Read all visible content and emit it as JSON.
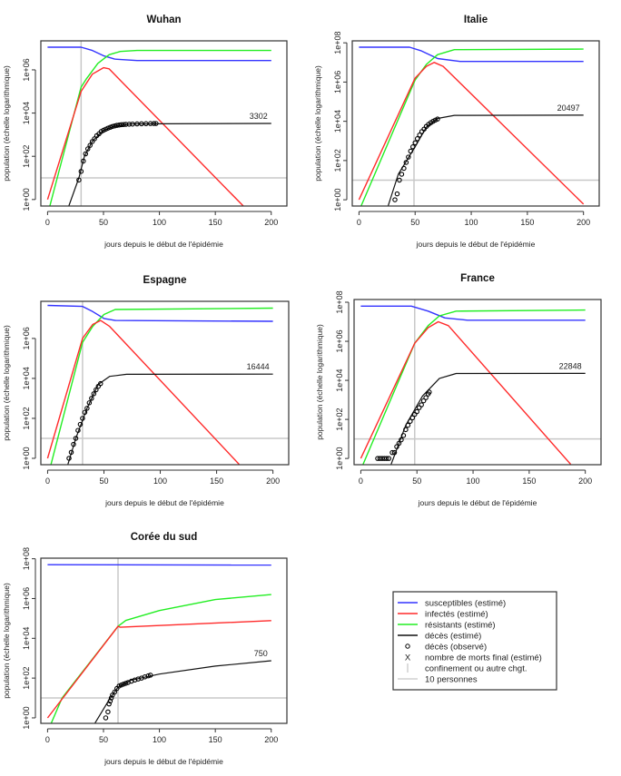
{
  "colors": {
    "susceptibles": "#3333ff",
    "infectes": "#ff2a2a",
    "resistants": "#22ee22",
    "deces": "#111111",
    "confinement": "#c8c8c8",
    "dix_personnes": "#c8c8c8"
  },
  "chart_data": [
    {
      "type": "line",
      "title": "Wuhan",
      "xlabel": "jours depuis le début de l'épidémie",
      "ylabel": "population (échelle logarithmique)",
      "y_scale": "log",
      "xlim": [
        -6,
        214
      ],
      "ylim": [
        0.5,
        22000000.0
      ],
      "xticks": [
        0,
        50,
        100,
        150,
        200
      ],
      "yticks": [
        1,
        100,
        10000,
        1000000
      ],
      "ytick_labels": [
        "1e+00",
        "1e+02",
        "1e+04",
        "1e+06"
      ],
      "confinement_day": 30,
      "hline": 10,
      "final_deaths_label": "3302",
      "susceptibles": [
        [
          0,
          11200000.0
        ],
        [
          30,
          11200000.0
        ],
        [
          40,
          7900000.0
        ],
        [
          50,
          4500000.0
        ],
        [
          60,
          3160000.0
        ],
        [
          80,
          2700000.0
        ],
        [
          200,
          2700000.0
        ]
      ],
      "resistants": [
        [
          2,
          0.5
        ],
        [
          30,
          158000.0
        ],
        [
          35,
          400000.0
        ],
        [
          45,
          2000000.0
        ],
        [
          55,
          5000000.0
        ],
        [
          65,
          7100000.0
        ],
        [
          80,
          7900000.0
        ],
        [
          200,
          7900000.0
        ]
      ],
      "infectes": [
        [
          0,
          1
        ],
        [
          30,
          100000.0
        ],
        [
          40,
          630000.0
        ],
        [
          50,
          1260000.0
        ],
        [
          55,
          1120000.0
        ],
        [
          175,
          0.5
        ]
      ],
      "deces": [
        [
          19,
          0.5
        ],
        [
          28,
          10
        ],
        [
          33,
          100
        ],
        [
          40,
          500
        ],
        [
          50,
          1580
        ],
        [
          60,
          2500
        ],
        [
          75,
          3160
        ],
        [
          200,
          3302
        ]
      ],
      "deces_observes": [
        [
          28,
          8
        ],
        [
          30,
          20
        ],
        [
          32,
          60
        ],
        [
          34,
          130
        ],
        [
          36,
          220
        ],
        [
          38,
          320
        ],
        [
          40,
          480
        ],
        [
          42,
          650
        ],
        [
          44,
          900
        ],
        [
          46,
          1100
        ],
        [
          48,
          1400
        ],
        [
          50,
          1600
        ],
        [
          52,
          1800
        ],
        [
          54,
          2000
        ],
        [
          56,
          2200
        ],
        [
          58,
          2400
        ],
        [
          60,
          2550
        ],
        [
          62,
          2700
        ],
        [
          64,
          2800
        ],
        [
          66,
          2900
        ],
        [
          68,
          2950
        ],
        [
          70,
          3000
        ],
        [
          73,
          3050
        ],
        [
          76,
          3100
        ],
        [
          80,
          3150
        ],
        [
          84,
          3200
        ],
        [
          88,
          3230
        ],
        [
          92,
          3260
        ],
        [
          95,
          3280
        ],
        [
          97,
          3290
        ]
      ]
    },
    {
      "type": "line",
      "title": "Italie",
      "xlabel": "jours depuis le début de l'épidémie",
      "ylabel": "population (échelle logarithmique)",
      "y_scale": "log",
      "xlim": [
        -6,
        214
      ],
      "ylim": [
        0.48,
        126000000.0
      ],
      "xticks": [
        0,
        50,
        100,
        150,
        200
      ],
      "yticks": [
        1,
        100,
        10000,
        1000000,
        100000000
      ],
      "ytick_labels": [
        "1e+00",
        "1e+02",
        "1e+04",
        "1e+06",
        "1e+08"
      ],
      "confinement_day": 49,
      "hline": 10,
      "final_deaths_label": "20497",
      "susceptibles": [
        [
          0,
          60000000.0
        ],
        [
          45,
          60000000.0
        ],
        [
          55,
          40000000.0
        ],
        [
          70,
          15800000.0
        ],
        [
          90,
          11200000.0
        ],
        [
          200,
          11200000.0
        ]
      ],
      "resistants": [
        [
          2,
          0.5
        ],
        [
          50,
          1260000.0
        ],
        [
          60,
          7900000.0
        ],
        [
          70,
          25000000.0
        ],
        [
          85,
          45000000.0
        ],
        [
          200,
          48000000.0
        ]
      ],
      "infectes": [
        [
          0,
          1
        ],
        [
          50,
          1580000.0
        ],
        [
          60,
          6300000.0
        ],
        [
          67,
          10000000.0
        ],
        [
          75,
          6300000.0
        ],
        [
          200,
          0.6
        ]
      ],
      "deces": [
        [
          26,
          0.5
        ],
        [
          35,
          20
        ],
        [
          50,
          500
        ],
        [
          60,
          5000
        ],
        [
          70,
          14000
        ],
        [
          85,
          20000
        ],
        [
          200,
          20497
        ]
      ],
      "deces_observes": [
        [
          32,
          1
        ],
        [
          34,
          2
        ],
        [
          36,
          10
        ],
        [
          38,
          20
        ],
        [
          40,
          40
        ],
        [
          42,
          80
        ],
        [
          44,
          150
        ],
        [
          46,
          300
        ],
        [
          48,
          500
        ],
        [
          50,
          800
        ],
        [
          52,
          1300
        ],
        [
          54,
          2000
        ],
        [
          56,
          3000
        ],
        [
          58,
          4000
        ],
        [
          60,
          5500
        ],
        [
          62,
          7000
        ],
        [
          64,
          8500
        ],
        [
          66,
          10000
        ],
        [
          68,
          11500
        ],
        [
          70,
          13000
        ]
      ]
    },
    {
      "type": "line",
      "title": "Espagne",
      "xlabel": "jours depuis le début de l'épidémie",
      "ylabel": "population (échelle logarithmique)",
      "y_scale": "log",
      "xlim": [
        -6,
        214
      ],
      "ylim": [
        0.48,
        72000000.0
      ],
      "xticks": [
        0,
        50,
        100,
        150,
        200
      ],
      "yticks": [
        1,
        100,
        10000,
        1000000
      ],
      "ytick_labels": [
        "1e+00",
        "1e+02",
        "1e+04",
        "1e+06"
      ],
      "confinement_day": 31,
      "hline": 10,
      "final_deaths_label": "16444",
      "susceptibles": [
        [
          0,
          45000000.0
        ],
        [
          31,
          40000000.0
        ],
        [
          40,
          22000000.0
        ],
        [
          50,
          10000000.0
        ],
        [
          60,
          7900000.0
        ],
        [
          200,
          7200000.0
        ]
      ],
      "resistants": [
        [
          3,
          0.5
        ],
        [
          31,
          630000.0
        ],
        [
          40,
          4000000.0
        ],
        [
          50,
          15800000.0
        ],
        [
          60,
          28000000.0
        ],
        [
          200,
          33000000.0
        ]
      ],
      "infectes": [
        [
          0,
          1
        ],
        [
          31,
          1000000.0
        ],
        [
          40,
          5000000.0
        ],
        [
          47,
          7900000.0
        ],
        [
          55,
          4000000.0
        ],
        [
          170,
          0.5
        ]
      ],
      "deces": [
        [
          18,
          0.5
        ],
        [
          25,
          10
        ],
        [
          35,
          320
        ],
        [
          45,
          5000
        ],
        [
          55,
          12600
        ],
        [
          70,
          16000
        ],
        [
          200,
          16444
        ]
      ],
      "deces_observes": [
        [
          19,
          1
        ],
        [
          21,
          2
        ],
        [
          23,
          5
        ],
        [
          25,
          10
        ],
        [
          27,
          25
        ],
        [
          29,
          50
        ],
        [
          31,
          100
        ],
        [
          33,
          200
        ],
        [
          35,
          320
        ],
        [
          37,
          600
        ],
        [
          39,
          1000
        ],
        [
          41,
          1700
        ],
        [
          43,
          2700
        ],
        [
          45,
          4000
        ],
        [
          47,
          5500
        ]
      ]
    },
    {
      "type": "line",
      "title": "France",
      "xlabel": "jours depuis le début de l'épidémie",
      "ylabel": "population (échelle logarithmique)",
      "y_scale": "log",
      "xlim": [
        -6,
        214
      ],
      "ylim": [
        0.48,
        138000000.0
      ],
      "xticks": [
        0,
        50,
        100,
        150,
        200
      ],
      "yticks": [
        1,
        100,
        10000,
        1000000,
        100000000
      ],
      "ytick_labels": [
        "1e+00",
        "1e+02",
        "1e+04",
        "1e+06",
        "1e+08"
      ],
      "confinement_day": 48,
      "hline": 10,
      "final_deaths_label": "22848",
      "susceptibles": [
        [
          0,
          63000000.0
        ],
        [
          45,
          63000000.0
        ],
        [
          60,
          35000000.0
        ],
        [
          75,
          15800000.0
        ],
        [
          95,
          12000000.0
        ],
        [
          200,
          12000000.0
        ]
      ],
      "resistants": [
        [
          2,
          0.5
        ],
        [
          48,
          790000.0
        ],
        [
          60,
          6300000.0
        ],
        [
          70,
          20000000.0
        ],
        [
          85,
          35000000.0
        ],
        [
          200,
          40000000.0
        ]
      ],
      "infectes": [
        [
          0,
          1
        ],
        [
          48,
          790000.0
        ],
        [
          60,
          5000000.0
        ],
        [
          69,
          10000000.0
        ],
        [
          78,
          6300000.0
        ],
        [
          187,
          0.5
        ]
      ],
      "deces": [
        [
          27,
          0.5
        ],
        [
          40,
          50
        ],
        [
          55,
          1580
        ],
        [
          70,
          12600
        ],
        [
          85,
          22400
        ],
        [
          200,
          22848
        ]
      ],
      "deces_observes": [
        [
          15,
          1
        ],
        [
          17,
          1
        ],
        [
          19,
          1
        ],
        [
          21,
          1
        ],
        [
          23,
          1
        ],
        [
          25,
          1
        ],
        [
          28,
          2
        ],
        [
          30,
          2
        ],
        [
          32,
          4
        ],
        [
          34,
          6
        ],
        [
          36,
          9
        ],
        [
          38,
          15
        ],
        [
          40,
          30
        ],
        [
          42,
          50
        ],
        [
          44,
          80
        ],
        [
          46,
          120
        ],
        [
          48,
          180
        ],
        [
          50,
          250
        ],
        [
          52,
          400
        ],
        [
          54,
          560
        ],
        [
          56,
          900
        ],
        [
          58,
          1300
        ],
        [
          60,
          2000
        ],
        [
          61,
          2500
        ]
      ]
    },
    {
      "type": "line",
      "title": "Corée du sud",
      "xlabel": "jours depuis le début de l'épidémie",
      "ylabel": "population (échelle logarithmique)",
      "y_scale": "log",
      "xlim": [
        -6,
        214
      ],
      "ylim": [
        0.53,
        107000000.0
      ],
      "xticks": [
        0,
        50,
        100,
        150,
        200
      ],
      "yticks": [
        1,
        100,
        10000,
        1000000,
        100000000
      ],
      "ytick_labels": [
        "1e+00",
        "1e+02",
        "1e+04",
        "1e+06",
        "1e+08"
      ],
      "confinement_day": 63,
      "hline": 10,
      "final_deaths_label": "750",
      "susceptibles": [
        [
          0,
          50000000.0
        ],
        [
          200,
          48000000.0
        ]
      ],
      "resistants": [
        [
          3,
          0.5
        ],
        [
          13,
          10
        ],
        [
          63,
          40000.0
        ],
        [
          70,
          79000.0
        ],
        [
          100,
          250000.0
        ],
        [
          150,
          890000.0
        ],
        [
          200,
          1580000.0
        ]
      ],
      "infectes": [
        [
          0,
          1
        ],
        [
          63,
          40000.0
        ],
        [
          65,
          36000.0
        ],
        [
          200,
          78000.0
        ]
      ],
      "deces": [
        [
          42,
          0.5
        ],
        [
          55,
          8
        ],
        [
          63,
          35
        ],
        [
          75,
          80
        ],
        [
          100,
          160
        ],
        [
          150,
          400
        ],
        [
          200,
          750
        ]
      ],
      "deces_observes": [
        [
          52,
          1
        ],
        [
          54,
          2
        ],
        [
          55,
          5
        ],
        [
          56,
          7
        ],
        [
          57,
          10
        ],
        [
          58,
          14
        ],
        [
          60,
          20
        ],
        [
          62,
          30
        ],
        [
          64,
          40
        ],
        [
          66,
          45
        ],
        [
          68,
          50
        ],
        [
          70,
          55
        ],
        [
          72,
          60
        ],
        [
          75,
          70
        ],
        [
          78,
          80
        ],
        [
          81,
          90
        ],
        [
          84,
          100
        ],
        [
          87,
          115
        ],
        [
          90,
          130
        ],
        [
          92,
          140
        ]
      ]
    }
  ],
  "legend": {
    "placement": "bottom-right",
    "items": [
      {
        "key": "susceptibles",
        "label": "susceptibles (estimé)",
        "symbol": "line"
      },
      {
        "key": "infectes",
        "label": "infectés (estimé)",
        "symbol": "line"
      },
      {
        "key": "resistants",
        "label": "résistants (estimé)",
        "symbol": "line"
      },
      {
        "key": "deces",
        "label": "décès (estimé)",
        "symbol": "line"
      },
      {
        "key": "deces_obs",
        "label": "décès (observé)",
        "symbol": "o"
      },
      {
        "key": "final",
        "label": "nombre de morts final (estimé)",
        "symbol": "X"
      },
      {
        "key": "confinement",
        "label": "confinement ou autre chgt.",
        "symbol": "vline"
      },
      {
        "key": "dix_personnes",
        "label": "10 personnes",
        "symbol": "hline"
      }
    ]
  }
}
